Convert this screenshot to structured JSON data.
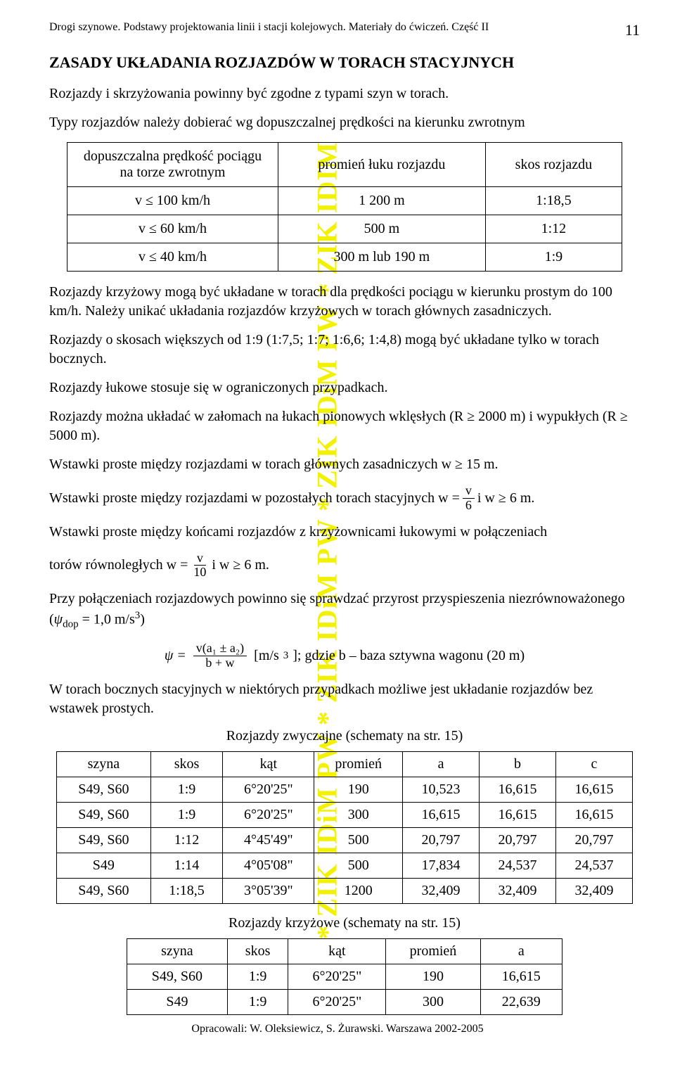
{
  "header": {
    "title": "Drogi szynowe. Podstawy projektowania linii i stacji kolejowych. Materiały do ćwiczeń. Część II",
    "page_number": "11"
  },
  "watermark": "* ZIK IDiM PW * ZIK IDiM PW * ZIK IDiM PW * ZIK IDIM",
  "section_title": "ZASADY UKŁADANIA ROZJAZDÓW W TORACH STACYJNYCH",
  "p1": "Rozjazdy i skrzyżowania powinny być zgodne z typami szyn w torach.",
  "p2": "Typy rozjazdów należy dobierać wg dopuszczalnej prędkości na kierunku zwrotnym",
  "table1": {
    "headers": {
      "col1": "dopuszczalna prędkość pociągu na torze zwrotnym",
      "col2": "promień łuku rozjazdu",
      "col3": "skos rozjazdu"
    },
    "rows": [
      {
        "c1": "v ≤ 100 km/h",
        "c2": "1 200 m",
        "c3": "1:18,5"
      },
      {
        "c1": "v ≤ 60 km/h",
        "c2": "500 m",
        "c3": "1:12"
      },
      {
        "c1": "v ≤ 40 km/h",
        "c2": "300 m lub 190 m",
        "c3": "1:9"
      }
    ]
  },
  "p3": "Rozjazdy krzyżowy mogą być układane w torach dla prędkości pociągu w kierunku prostym do 100 km/h. Należy unikać układania rozjazdów krzyżowych w torach głównych zasadniczych.",
  "p4": "Rozjazdy o skosach większych od 1:9 (1:7,5; 1:7; 1:6,6; 1:4,8) mogą być układane tylko w torach bocznych.",
  "p5": "Rozjazdy łukowe stosuje się w ograniczonych przypadkach.",
  "p6": "Rozjazdy można układać w załomach na łukach pionowych wklęsłych (R ≥ 2000 m) i wypukłych (R ≥ 5000 m).",
  "p7": "Wstawki proste między rozjazdami w torach głównych zasadniczych w ≥ 15 m.",
  "p8": {
    "pre": "Wstawki proste między rozjazdami w pozostałych torach stacyjnych  w =",
    "num": "v",
    "den": "6",
    "post": "  i w ≥ 6 m."
  },
  "p9": "Wstawki proste między końcami rozjazdów z krzyżownicami łukowymi w połączeniach",
  "p9b": {
    "pre": "torów równoległych  w =",
    "num": "v",
    "den": "10",
    "post": "  i w ≥ 6 m."
  },
  "p10": {
    "line1": "Przy połączeniach rozjazdowych powinno się sprawdzać przyrost przyspieszenia niezrównoważonego (",
    "psi": "ψ",
    "dop": "dop",
    "eq": " = 1,0 m/s",
    "exp": "3",
    "close": ")"
  },
  "formula": {
    "psi": "ψ =",
    "num": "v(a₁ ± a₂)",
    "den": "b + w",
    "units_open": "  [m/s",
    "exp": "3",
    "units_close": "]; gdzie b – baza sztywna wagonu (20 m)"
  },
  "p11": "W torach bocznych stacyjnych w niektórych przypadkach możliwe jest układanie rozjazdów bez wstawek prostych.",
  "caption2": "Rozjazdy zwyczajne (schematy na str. 15)",
  "table2": {
    "headers": {
      "c1": "szyna",
      "c2": "skos",
      "c3": "kąt",
      "c4": "promień",
      "c5": "a",
      "c6": "b",
      "c7": "c"
    },
    "rows": [
      {
        "c1": "S49, S60",
        "c2": "1:9",
        "c3": "6°20'25\"",
        "c4": "190",
        "c5": "10,523",
        "c6": "16,615",
        "c7": "16,615"
      },
      {
        "c1": "S49, S60",
        "c2": "1:9",
        "c3": "6°20'25\"",
        "c4": "300",
        "c5": "16,615",
        "c6": "16,615",
        "c7": "16,615"
      },
      {
        "c1": "S49, S60",
        "c2": "1:12",
        "c3": "4°45'49\"",
        "c4": "500",
        "c5": "20,797",
        "c6": "20,797",
        "c7": "20,797"
      },
      {
        "c1": "S49",
        "c2": "1:14",
        "c3": "4°05'08\"",
        "c4": "500",
        "c5": "17,834",
        "c6": "24,537",
        "c7": "24,537"
      },
      {
        "c1": "S49, S60",
        "c2": "1:18,5",
        "c3": "3°05'39\"",
        "c4": "1200",
        "c5": "32,409",
        "c6": "32,409",
        "c7": "32,409"
      }
    ]
  },
  "caption3": "Rozjazdy krzyżowe (schematy na str. 15)",
  "table3": {
    "headers": {
      "c1": "szyna",
      "c2": "skos",
      "c3": "kąt",
      "c4": "promień",
      "c5": "a"
    },
    "rows": [
      {
        "c1": "S49, S60",
        "c2": "1:9",
        "c3": "6°20'25\"",
        "c4": "190",
        "c5": "16,615"
      },
      {
        "c1": "S49",
        "c2": "1:9",
        "c3": "6°20'25\"",
        "c4": "300",
        "c5": "22,639"
      }
    ]
  },
  "footer": "Opracowali: W. Oleksiewicz, S. Żurawski. Warszawa 2002-2005"
}
